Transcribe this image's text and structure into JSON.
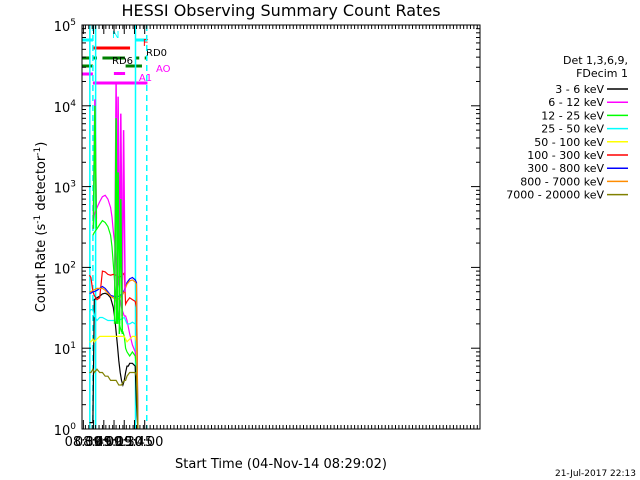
{
  "chart_data": {
    "type": "line",
    "title": "HESSI Observing Summary Count Rates",
    "xlabel": "Start Time (04-Nov-14 08:29:02)",
    "ylabel": "Count Rate (s",
    "ylabel_sup1": "-1",
    "ylabel_mid": " detector",
    "ylabel_sup2": "-1",
    "ylabel_end": ")",
    "yscale": "log",
    "xlim": [
      508,
      1092
    ],
    "ylim": [
      1,
      100000
    ],
    "x_ticks": [
      {
        "value": 510,
        "label": "08:30"
      },
      {
        "value": 525,
        "label": "08:45"
      },
      {
        "value": 540,
        "label": "09:00"
      },
      {
        "value": 555,
        "label": "09:15"
      },
      {
        "value": 570,
        "label": "09:30"
      },
      {
        "value": 585,
        "label": "09:45"
      },
      {
        "value": 600,
        "label": "10:00"
      }
    ],
    "y_ticks": [
      {
        "value": 1,
        "base": "10",
        "exp": "0"
      },
      {
        "value": 10,
        "base": "10",
        "exp": "1"
      },
      {
        "value": 100,
        "base": "10",
        "exp": "2"
      },
      {
        "value": 1000,
        "base": "10",
        "exp": "3"
      },
      {
        "value": 10000,
        "base": "10",
        "exp": "4"
      },
      {
        "value": 100000,
        "base": "10",
        "exp": "5"
      }
    ],
    "legend_header": [
      "Det 1,3,6,9,",
      "FDecim 1"
    ],
    "series": [
      {
        "name": "3 - 6 keV",
        "color": "#000000",
        "x": [
          519,
          521,
          524,
          526,
          530,
          534,
          538,
          542,
          546,
          550,
          554,
          556,
          558,
          560,
          562,
          564,
          566,
          568,
          570,
          572,
          574,
          576,
          578,
          582,
          586,
          588,
          590
        ],
        "values": [
          1.2,
          1.2,
          1.2,
          40,
          42,
          44,
          47,
          48,
          46,
          42,
          32,
          24,
          16,
          11,
          7,
          5,
          4,
          3.5,
          4,
          5,
          6,
          6,
          6.5,
          6.5,
          6,
          2,
          1
        ]
      },
      {
        "name": "6 - 12 keV",
        "color": "#ff00ff",
        "x": [
          524,
          526,
          530,
          534,
          538,
          542,
          546,
          550,
          552,
          554,
          556,
          558,
          560,
          562,
          564,
          566,
          568,
          570,
          572,
          574,
          578,
          582,
          586,
          588,
          590
        ],
        "values": [
          300,
          450,
          550,
          650,
          750,
          780,
          700,
          550,
          420,
          280,
          200,
          120,
          80,
          60,
          40,
          32,
          28,
          25,
          25,
          22,
          15,
          11,
          9,
          7,
          1
        ]
      },
      {
        "name": "12 - 25 keV",
        "color": "#00ff00",
        "x": [
          524,
          526,
          530,
          534,
          538,
          542,
          546,
          550,
          552,
          554,
          556,
          558,
          560,
          562,
          564,
          566,
          568,
          570,
          572,
          574,
          578,
          582,
          586,
          588,
          590
        ],
        "values": [
          250,
          270,
          300,
          340,
          380,
          360,
          320,
          250,
          180,
          110,
          65,
          40,
          30,
          22,
          18,
          16,
          16,
          14,
          10,
          9,
          8,
          9,
          8,
          6,
          1
        ]
      },
      {
        "name": "25 - 50 keV",
        "color": "#00ffff",
        "x": [
          519,
          521,
          524,
          526,
          530,
          534,
          538,
          542,
          546,
          550,
          554,
          558,
          562,
          566,
          570,
          572,
          574,
          578,
          582,
          586,
          588,
          590
        ],
        "values": [
          28,
          30,
          30,
          25,
          22,
          24,
          24,
          23,
          22,
          22,
          22,
          22,
          22,
          23,
          24,
          22,
          20,
          20,
          21,
          20,
          18,
          1
        ]
      },
      {
        "name": "50 - 100 keV",
        "color": "#ffff00",
        "x": [
          519,
          521,
          524,
          526,
          530,
          534,
          538,
          542,
          546,
          550,
          554,
          558,
          562,
          566,
          570,
          572,
          574,
          578,
          582,
          586,
          588,
          590
        ],
        "values": [
          12,
          12,
          13,
          12,
          13,
          14,
          14,
          14,
          14,
          14,
          14,
          14,
          14,
          14,
          14,
          13,
          12,
          13,
          14,
          14,
          12,
          1
        ]
      },
      {
        "name": "100 - 300 keV",
        "color": "#ff0000",
        "x": [
          519,
          521,
          524,
          526,
          530,
          534,
          538,
          542,
          546,
          550,
          554,
          558,
          562,
          566,
          570,
          572,
          574,
          578,
          582,
          586,
          588,
          590
        ],
        "values": [
          80,
          75,
          50,
          45,
          40,
          42,
          90,
          88,
          82,
          80,
          82,
          80,
          75,
          78,
          85,
          35,
          38,
          42,
          40,
          38,
          32,
          1
        ]
      },
      {
        "name": "300 - 800 keV",
        "color": "#0000ff",
        "x": [
          519,
          521,
          524,
          526,
          530,
          534,
          538,
          542,
          546,
          550,
          554,
          558,
          562,
          566,
          570,
          572,
          574,
          578,
          582,
          586,
          588,
          590
        ],
        "values": [
          48,
          48,
          50,
          50,
          52,
          55,
          58,
          55,
          50,
          45,
          44,
          43,
          44,
          46,
          52,
          58,
          65,
          72,
          75,
          70,
          65,
          1
        ]
      },
      {
        "name": "800 - 7000 keV",
        "color": "#ff8c00",
        "x": [
          519,
          521,
          524,
          526,
          530,
          534,
          538,
          542,
          546,
          550,
          554,
          558,
          562,
          566,
          570,
          572,
          574,
          578,
          582,
          586,
          588,
          590
        ],
        "values": [
          50,
          50,
          52,
          53,
          55,
          55,
          55,
          52,
          48,
          44,
          42,
          40,
          41,
          44,
          50,
          56,
          62,
          68,
          70,
          66,
          62,
          1
        ]
      },
      {
        "name": "7000 - 20000 keV",
        "color": "#808000",
        "x": [
          519,
          521,
          524,
          526,
          530,
          534,
          538,
          542,
          546,
          550,
          554,
          558,
          562,
          566,
          570,
          572,
          574,
          578,
          582,
          586,
          588,
          590
        ],
        "values": [
          5,
          5,
          5.5,
          5,
          5.5,
          5,
          5,
          4.5,
          4.5,
          4,
          4,
          4,
          3.5,
          3.5,
          4,
          4,
          4.5,
          5,
          5,
          5,
          4.5,
          1
        ]
      }
    ],
    "spikes": [
      {
        "x": 527,
        "color": "#ff00ff",
        "values": [
          400,
          12000,
          400
        ]
      },
      {
        "x": 558,
        "color": "#ff00ff",
        "values": [
          30,
          19000,
          60
        ]
      },
      {
        "x": 561,
        "color": "#ff00ff",
        "values": [
          30,
          13000,
          60
        ]
      },
      {
        "x": 565,
        "color": "#ff00ff",
        "values": [
          25,
          8000,
          50
        ]
      },
      {
        "x": 569,
        "color": "#ff00ff",
        "values": [
          25,
          5000,
          50
        ]
      },
      {
        "x": 527,
        "color": "#00ff00",
        "values": [
          300,
          10000,
          300
        ]
      },
      {
        "x": 558,
        "color": "#00ff00",
        "values": [
          20,
          7000,
          20
        ]
      },
      {
        "x": 561,
        "color": "#00ff00",
        "values": [
          20,
          1500,
          20
        ]
      },
      {
        "x": 565,
        "color": "#00ff00",
        "values": [
          15,
          700,
          15
        ]
      }
    ],
    "vlines": [
      {
        "x": 519.5,
        "color": "#00ffff",
        "style": "solid"
      },
      {
        "x": 524,
        "color": "#00ffff",
        "style": "dashed"
      },
      {
        "x": 528,
        "color": "#00ffff",
        "style": "solid"
      },
      {
        "x": 586.5,
        "color": "#00ffff",
        "style": "solid"
      },
      {
        "x": 603,
        "color": "#00ffff",
        "style": "dashed"
      }
    ],
    "flags": [
      {
        "label": "N",
        "color": "#00ffff",
        "segments": [
          [
            508,
            524
          ],
          [
            586.5,
            603
          ]
        ]
      },
      {
        "label": "F",
        "color": "#ff0000",
        "segments": [
          [
            524,
            578.5
          ]
        ]
      },
      {
        "label": "RD0",
        "color": "#008000",
        "segments": [
          [
            508,
            519
          ],
          [
            524,
            530
          ],
          [
            538,
            571
          ],
          [
            587,
            592
          ],
          [
            600,
            604
          ]
        ]
      },
      {
        "label": "RD6",
        "color": "#008000",
        "segments": [
          [
            508,
            524
          ],
          [
            572,
            596
          ]
        ]
      },
      {
        "label": "AO",
        "color": "#ff00ff",
        "segments": [
          [
            508,
            524
          ],
          [
            527,
            528
          ]
        ]
      },
      {
        "label": "A1",
        "color": "#ff00ff",
        "segments": [
          [
            524,
            604
          ]
        ]
      }
    ],
    "flag_dots": [
      557,
      561,
      565,
      569
    ],
    "grid": false,
    "legend": "right"
  },
  "footer": {
    "date": "21-Jul-2017 22:13"
  }
}
